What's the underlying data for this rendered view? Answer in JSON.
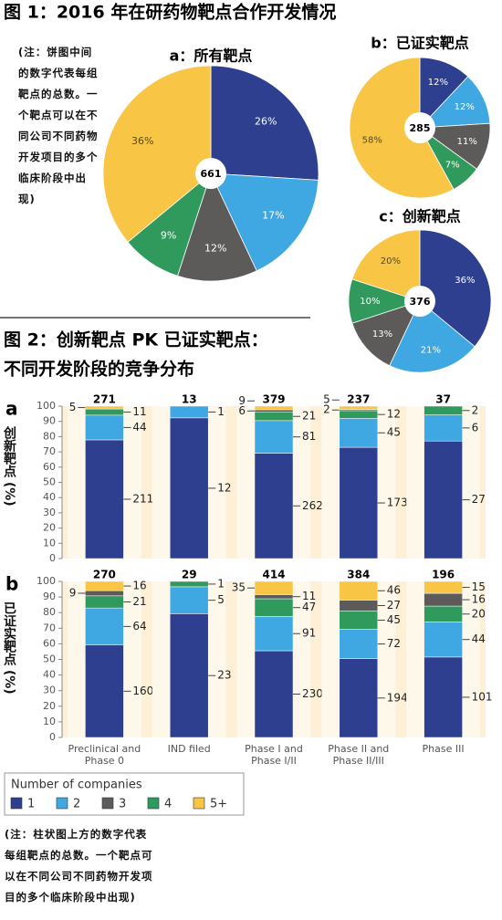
{
  "figure1_title": "图 1：2016 年在研药物靶点合作开发情况",
  "figure1_note": "(注：饼图中间的数字代表每组靶点的总数。一个靶点可以在不同公司不同药物开发项目的多个临床阶段中出现)",
  "figure2_title": [
    "图 2：创新靶点 PK 已证实靶点：",
    "不同开发阶段的竞争分布"
  ],
  "bottom_note": "(注：柱状图上方的数字代表每组靶点的总数。一个靶点可以在不同公司不同药物开发项目的多个临床阶段中出现)",
  "chart_data": [
    {
      "type": "pie",
      "title": "a：所有靶点",
      "total": 661,
      "values": [
        26,
        17,
        12,
        9,
        36
      ],
      "value_labels": [
        "26%",
        "17%",
        "12%",
        "9%",
        "36%"
      ],
      "colors": [
        "#2e3f8f",
        "#3fa7e1",
        "#5d5a5a",
        "#2f9a5c",
        "#f8c545"
      ]
    },
    {
      "type": "pie",
      "title": "b：已证实靶点",
      "total": 285,
      "values": [
        12,
        12,
        11,
        7,
        58
      ],
      "value_labels": [
        "12%",
        "12%",
        "11%",
        "7%",
        "58%"
      ],
      "colors": [
        "#2e3f8f",
        "#3fa7e1",
        "#5d5a5a",
        "#2f9a5c",
        "#f8c545"
      ]
    },
    {
      "type": "pie",
      "title": "c：创新靶点",
      "total": 376,
      "values": [
        36,
        21,
        13,
        10,
        20
      ],
      "value_labels": [
        "36%",
        "21%",
        "13%",
        "10%",
        "20%"
      ],
      "colors": [
        "#2e3f8f",
        "#3fa7e1",
        "#5d5a5a",
        "#2f9a5c",
        "#f8c545"
      ]
    },
    {
      "type": "bar",
      "panel": "a",
      "ylabel": "创新靶点 (%)",
      "stacked": true,
      "normalize": "percent",
      "categories": [
        null,
        null,
        null,
        null,
        null
      ],
      "totals": [
        271,
        13,
        379,
        237,
        37
      ],
      "stack_order": [
        0,
        1,
        3,
        2,
        4
      ],
      "series": [
        {
          "color": "#2e3f8f",
          "values": [
            211,
            12,
            262,
            173,
            27
          ]
        },
        {
          "color": "#3fa7e1",
          "values": [
            44,
            1,
            81,
            45,
            6
          ]
        },
        {
          "color": "#5d5a5a",
          "values": [
            null,
            null,
            6,
            2,
            null
          ]
        },
        {
          "color": "#2f9a5c",
          "values": [
            11,
            null,
            21,
            12,
            2
          ]
        },
        {
          "color": "#f8c545",
          "values": [
            5,
            null,
            9,
            5,
            null
          ]
        }
      ],
      "ylim": [
        0,
        100
      ],
      "yticks": [
        0,
        10,
        20,
        30,
        40,
        50,
        60,
        70,
        80,
        90,
        100
      ]
    },
    {
      "type": "bar",
      "panel": "b",
      "ylabel": "已证实靶点 (%)",
      "stacked": true,
      "normalize": "percent",
      "categories": [
        "Preclinical and Phase 0",
        "IND filed",
        "Phase I and Phase I/II",
        "Phase II and Phase II/III",
        "Phase III"
      ],
      "totals": [
        270,
        29,
        414,
        384,
        196
      ],
      "stack_order": [
        0,
        1,
        3,
        2,
        4
      ],
      "legend_title": "Number of companies",
      "series": [
        {
          "name": "1",
          "color": "#2e3f8f",
          "values": [
            160,
            23,
            230,
            194,
            101
          ]
        },
        {
          "name": "2",
          "color": "#3fa7e1",
          "values": [
            64,
            5,
            91,
            72,
            44
          ]
        },
        {
          "name": "3",
          "color": "#5d5a5a",
          "values": [
            9,
            null,
            11,
            27,
            16
          ]
        },
        {
          "name": "4",
          "color": "#2f9a5c",
          "values": [
            21,
            1,
            47,
            45,
            20
          ]
        },
        {
          "name": "5+",
          "color": "#f8c545",
          "values": [
            16,
            null,
            35,
            46,
            15
          ]
        }
      ],
      "ylim": [
        0,
        100
      ],
      "yticks": [
        0,
        10,
        20,
        30,
        40,
        50,
        60,
        70,
        80,
        90,
        100
      ]
    }
  ]
}
